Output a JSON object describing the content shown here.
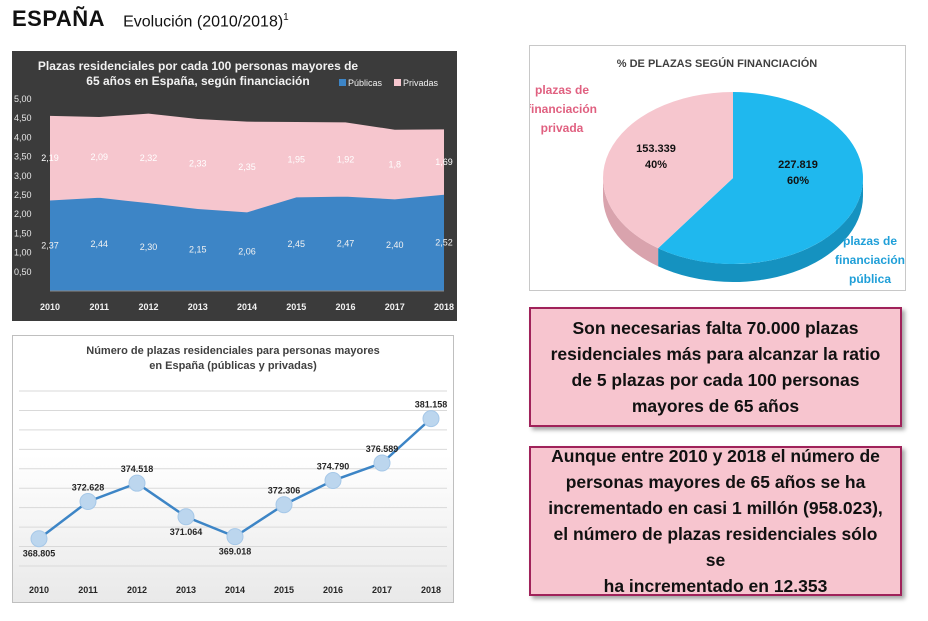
{
  "header": {
    "country": "ESPAÑA",
    "subtitle": "Evolución (2010/2018)",
    "footnote_mark": "1"
  },
  "chart_data": [
    {
      "type": "area",
      "title_line1": "Plazas residenciales por cada 100 personas mayores de",
      "title_line2": "65 años en España, según financiación",
      "categories": [
        "2010",
        "2011",
        "2012",
        "2013",
        "2014",
        "2015",
        "2016",
        "2017",
        "2018"
      ],
      "series": [
        {
          "name": "Públicas",
          "values": [
            2.37,
            2.44,
            2.3,
            2.15,
            2.06,
            2.45,
            2.47,
            2.4,
            2.52
          ],
          "labels": [
            "2,37",
            "2,44",
            "2,30",
            "2,15",
            "2,06",
            "2,45",
            "2,47",
            "2,40",
            "2,52"
          ],
          "color": "#3d85c6"
        },
        {
          "name": "Privadas",
          "values": [
            2.19,
            2.09,
            2.32,
            2.33,
            2.35,
            1.95,
            1.92,
            1.8,
            1.69
          ],
          "labels": [
            "2,19",
            "2,09",
            "2,32",
            "2,33",
            "2,35",
            "1,95",
            "1,92",
            "1,8",
            "1,69"
          ],
          "color": "#f6c6ce"
        }
      ],
      "ylim": [
        0,
        5
      ],
      "y_ticks": [
        "0,50",
        "1,00",
        "1,50",
        "2,00",
        "2,50",
        "3,00",
        "3,50",
        "4,00",
        "4,50",
        "5,00"
      ],
      "y_tick_values": [
        0.5,
        1,
        1.5,
        2,
        2.5,
        3,
        3.5,
        4,
        4.5,
        5
      ],
      "legend": "top-right"
    },
    {
      "type": "line",
      "title_line1": "Número de plazas residenciales para personas mayores",
      "title_line2": "en España (públicas y privadas)",
      "categories": [
        "2010",
        "2011",
        "2012",
        "2013",
        "2014",
        "2015",
        "2016",
        "2017",
        "2018"
      ],
      "values": [
        368805,
        372628,
        374518,
        371064,
        369018,
        372306,
        374790,
        376589,
        381158
      ],
      "labels": [
        "368.805",
        "372.628",
        "374.518",
        "371.064",
        "369.018",
        "372.306",
        "374.790",
        "376.589",
        "381.158"
      ],
      "ylim": [
        366000,
        384000
      ],
      "grid": true,
      "color": "#3d85c6"
    },
    {
      "type": "pie",
      "title": "% DE PLAZAS SEGÚN FINANCIACIÓN",
      "slices": [
        {
          "name_lines": [
            "plazas de",
            "financiación",
            "privada"
          ],
          "value": 153339,
          "value_label": "153.339",
          "percent_label": "40%",
          "color": "#f6c6ce",
          "name_color": "#e06080"
        },
        {
          "name_lines": [
            "plazas de",
            "financiación",
            "pública"
          ],
          "value": 227819,
          "value_label": "227.819",
          "percent_label": "60%",
          "color": "#1fb8ee",
          "name_color": "#1f9fd8"
        }
      ]
    }
  ],
  "notes": [
    {
      "lines": [
        "Son necesarias falta 70.000 plazas",
        "residenciales más para alcanzar la ratio",
        "de 5 plazas por cada 100 personas",
        "mayores de 65 años"
      ]
    },
    {
      "lines": [
        "Aunque entre 2010 y 2018 el número de",
        "personas mayores de 65 años se ha",
        "incrementado en casi 1 millón (958.023),",
        "el número de plazas residenciales sólo se",
        "ha incrementado en 12.353"
      ]
    }
  ]
}
